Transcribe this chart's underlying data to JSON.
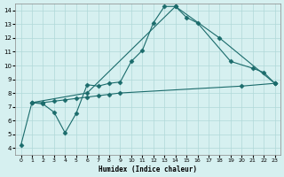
{
  "xlabel": "Humidex (Indice chaleur)",
  "bg_color": "#d6f0f0",
  "grid_color": "#b0d8d8",
  "line_color": "#1a6b6b",
  "xlim": [
    -0.5,
    23.5
  ],
  "ylim": [
    3.5,
    14.5
  ],
  "xticks": [
    0,
    1,
    2,
    3,
    4,
    5,
    6,
    7,
    8,
    9,
    10,
    11,
    12,
    13,
    14,
    15,
    16,
    17,
    18,
    19,
    20,
    21,
    22,
    23
  ],
  "yticks": [
    4,
    5,
    6,
    7,
    8,
    9,
    10,
    11,
    12,
    13,
    14
  ],
  "line1_x": [
    0,
    1,
    2,
    3,
    4,
    5,
    6,
    7,
    8,
    9,
    10,
    11,
    12,
    13,
    14,
    15,
    16,
    19,
    21,
    22,
    23
  ],
  "line1_y": [
    4.2,
    7.3,
    7.2,
    6.6,
    5.1,
    6.5,
    8.6,
    8.5,
    8.7,
    8.8,
    10.3,
    11.1,
    13.1,
    14.3,
    14.3,
    13.5,
    13.1,
    10.3,
    9.8,
    9.5,
    8.7
  ],
  "line2_x": [
    1,
    6,
    14,
    18,
    23
  ],
  "line2_y": [
    7.3,
    8.0,
    14.3,
    12.0,
    8.7
  ],
  "line3_x": [
    1,
    2,
    3,
    4,
    5,
    6,
    7,
    8,
    9,
    20,
    23
  ],
  "line3_y": [
    7.3,
    7.3,
    7.4,
    7.5,
    7.6,
    7.7,
    7.8,
    7.9,
    8.0,
    8.5,
    8.7
  ]
}
